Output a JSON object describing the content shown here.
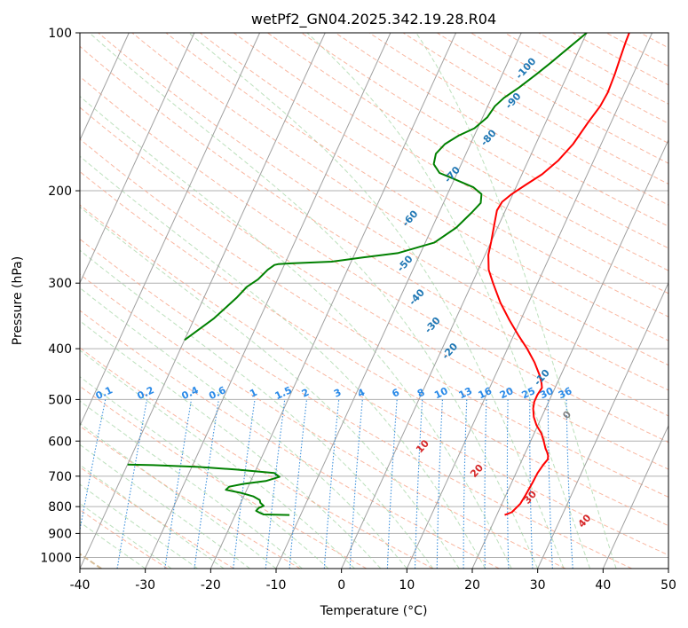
{
  "chart_data": {
    "type": "line",
    "title": "wetPf2_GN04.2025.342.19.28.R04",
    "xlabel": "Temperature (°C)",
    "ylabel": "Pressure (hPa)",
    "xlim": [
      -40,
      50
    ],
    "ylim": [
      1050,
      100
    ],
    "y_scale": "log",
    "grid": true,
    "x_ticks": [
      -40,
      -30,
      -20,
      -10,
      0,
      10,
      20,
      30,
      40,
      50
    ],
    "y_ticks": [
      100,
      200,
      300,
      400,
      500,
      600,
      700,
      800,
      900,
      1000
    ],
    "series": [
      {
        "color": "#ff0000",
        "points": [
          [
            21.2,
            830
          ],
          [
            22.1,
            820
          ],
          [
            22.8,
            790
          ],
          [
            23.0,
            760
          ],
          [
            23.2,
            720
          ],
          [
            23.3,
            690
          ],
          [
            23.6,
            665
          ],
          [
            23.9,
            650
          ],
          [
            23.7,
            640
          ],
          [
            23.3,
            630
          ],
          [
            22.8,
            620
          ],
          [
            22.0,
            600
          ],
          [
            21.1,
            580
          ],
          [
            19.8,
            560
          ],
          [
            18.8,
            540
          ],
          [
            18.1,
            520
          ],
          [
            17.8,
            505
          ],
          [
            17.8,
            490
          ],
          [
            18.0,
            475
          ],
          [
            17.6,
            465
          ],
          [
            16.8,
            450
          ],
          [
            15.1,
            425
          ],
          [
            13.0,
            400
          ],
          [
            10.8,
            378
          ],
          [
            8.3,
            353
          ],
          [
            5.7,
            327
          ],
          [
            3.2,
            300
          ],
          [
            1.6,
            283
          ],
          [
            0.5,
            265
          ],
          [
            0.0,
            250
          ],
          [
            -0.8,
            230
          ],
          [
            -1.3,
            218
          ],
          [
            -1.1,
            210
          ],
          [
            -0.2,
            203
          ],
          [
            1.3,
            195
          ],
          [
            3.1,
            186
          ],
          [
            4.6,
            175
          ],
          [
            5.7,
            163
          ],
          [
            6.5,
            148
          ],
          [
            7.2,
            138
          ],
          [
            7.4,
            130
          ],
          [
            7.2,
            120
          ],
          [
            6.9,
            112
          ],
          [
            6.6,
            104
          ],
          [
            6.5,
            100
          ]
        ]
      },
      {
        "color": "#008000",
        "points": [
          [
            -11.7,
            830
          ],
          [
            -15.7,
            828
          ],
          [
            -16.4,
            822
          ],
          [
            -17.1,
            815
          ],
          [
            -16.9,
            805
          ],
          [
            -16.3,
            797
          ],
          [
            -17.0,
            787
          ],
          [
            -17.3,
            777
          ],
          [
            -18.5,
            765
          ],
          [
            -20.7,
            753
          ],
          [
            -23.2,
            743
          ],
          [
            -22.9,
            733
          ],
          [
            -20.9,
            724
          ],
          [
            -17.7,
            715
          ],
          [
            -15.9,
            702
          ],
          [
            -17.0,
            690
          ],
          [
            -23.0,
            680
          ],
          [
            -29.0,
            672
          ],
          [
            -36.0,
            667
          ],
          [
            -40.0,
            665
          ]
        ]
      },
      {
        "color": "#008000",
        "points": [
          [
            -40.0,
            385
          ],
          [
            -37.0,
            350
          ],
          [
            -35.0,
            320
          ],
          [
            -34.2,
            305
          ],
          [
            -33.0,
            295
          ],
          [
            -32.2,
            283
          ],
          [
            -31.5,
            277
          ],
          [
            -31.0,
            276
          ],
          [
            -29.0,
            275
          ],
          [
            -23.0,
            273
          ],
          [
            -18.5,
            268
          ],
          [
            -13.5,
            263
          ],
          [
            -8.6,
            251
          ],
          [
            -6.3,
            235
          ],
          [
            -5.0,
            220
          ],
          [
            -4.3,
            211
          ],
          [
            -4.8,
            203
          ],
          [
            -6.5,
            197
          ],
          [
            -10.0,
            190
          ],
          [
            -12.7,
            185
          ],
          [
            -14.2,
            178
          ],
          [
            -14.6,
            170
          ],
          [
            -13.9,
            163
          ],
          [
            -12.4,
            157
          ],
          [
            -10.5,
            152
          ],
          [
            -9.3,
            145
          ],
          [
            -8.9,
            138
          ],
          [
            -8.1,
            133
          ],
          [
            -6.5,
            127
          ],
          [
            -4.8,
            120
          ],
          [
            -3.4,
            114
          ],
          [
            -2.0,
            108
          ],
          [
            0.0,
            100
          ]
        ]
      }
    ],
    "dry_adiabat_labels": [
      "-100",
      "-90",
      "-80",
      "-70",
      "-60",
      "-50",
      "-40",
      "-30",
      "-20",
      "-10",
      "0",
      "10",
      "20",
      "30",
      "40"
    ],
    "mixing_ratio_labels": [
      "0.1",
      "0.2",
      "0.4",
      "0.6",
      "1",
      "1.5",
      "2",
      "3",
      "4",
      "6",
      "8",
      "10",
      "13",
      "16",
      "20",
      "25",
      "30",
      "36"
    ]
  }
}
